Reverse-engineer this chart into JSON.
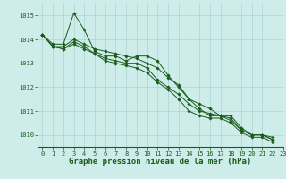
{
  "background_color": "#ceecea",
  "grid_color": "#aad4d0",
  "line_color": "#1a5c1a",
  "marker_color": "#1a5c1a",
  "xlabel": "Graphe pression niveau de la mer (hPa)",
  "xlabel_fontsize": 6.5,
  "xlabel_color": "#1a5c1a",
  "tick_color": "#1a5c1a",
  "tick_fontsize": 5.0,
  "xlim": [
    -0.5,
    23
  ],
  "ylim": [
    1009.5,
    1015.5
  ],
  "yticks": [
    1010,
    1011,
    1012,
    1013,
    1014,
    1015
  ],
  "xticks": [
    0,
    1,
    2,
    3,
    4,
    5,
    6,
    7,
    8,
    9,
    10,
    11,
    12,
    13,
    14,
    15,
    16,
    17,
    18,
    19,
    20,
    21,
    22,
    23
  ],
  "series": [
    [
      1014.2,
      1013.8,
      1013.8,
      1015.1,
      1014.4,
      1013.5,
      1013.3,
      1013.3,
      1013.1,
      1013.3,
      1013.3,
      1013.1,
      1012.5,
      1012.0,
      1011.5,
      1011.3,
      1011.1,
      1010.8,
      1010.8,
      1010.3,
      1010.0,
      1010.0,
      1009.9
    ],
    [
      1014.2,
      1013.7,
      1013.7,
      1014.0,
      1013.8,
      1013.6,
      1013.5,
      1013.4,
      1013.3,
      1013.2,
      1013.0,
      1012.8,
      1012.4,
      1012.1,
      1011.5,
      1011.1,
      1010.8,
      1010.8,
      1010.7,
      1010.2,
      1010.0,
      1010.0,
      1009.8
    ],
    [
      1014.2,
      1013.7,
      1013.6,
      1013.9,
      1013.7,
      1013.4,
      1013.2,
      1013.1,
      1013.0,
      1013.0,
      1012.8,
      1012.3,
      1012.0,
      1011.7,
      1011.3,
      1011.0,
      1010.9,
      1010.8,
      1010.6,
      1010.2,
      1010.0,
      1010.0,
      1009.8
    ],
    [
      1014.2,
      1013.7,
      1013.6,
      1013.8,
      1013.6,
      1013.4,
      1013.1,
      1013.0,
      1012.9,
      1012.8,
      1012.6,
      1012.2,
      1011.9,
      1011.5,
      1011.0,
      1010.8,
      1010.7,
      1010.7,
      1010.5,
      1010.1,
      1009.9,
      1009.9,
      1009.7
    ]
  ]
}
